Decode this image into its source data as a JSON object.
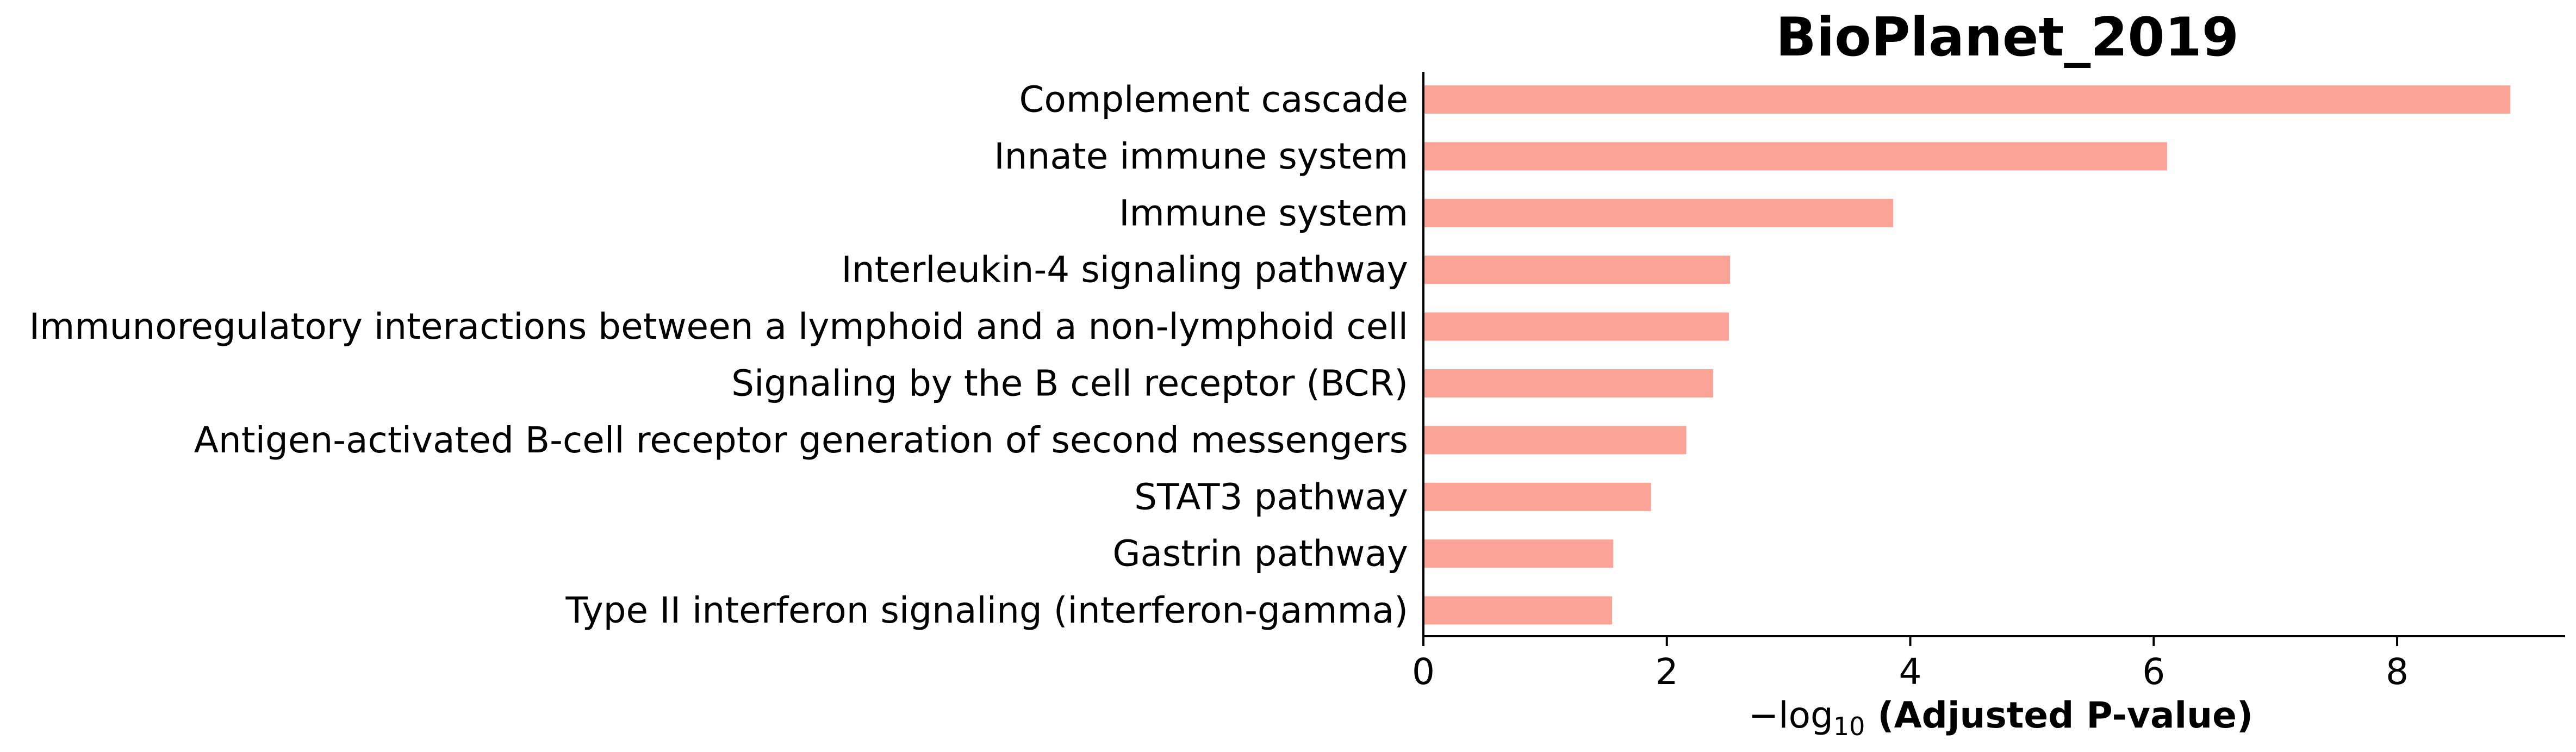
{
  "chart_data": {
    "type": "bar",
    "orientation": "horizontal",
    "title": "BioPlanet_2019",
    "xlabel": {
      "prefix": "−log",
      "subscript": "10",
      "main": " (Adjusted P-value)"
    },
    "ylabel": "",
    "categories": [
      "Complement cascade",
      "Innate immune system",
      "Immune system",
      "Interleukin-4 signaling pathway",
      "Immunoregulatory interactions between a lymphoid and a non-lymphoid cell",
      "Signaling by the B cell receptor (BCR)",
      "Antigen-activated B-cell receptor generation of second messengers",
      "STAT3 pathway",
      "Gastrin pathway",
      "Type II interferon signaling (interferon-gamma)"
    ],
    "values": [
      8.93,
      6.11,
      3.86,
      2.52,
      2.51,
      2.38,
      2.16,
      1.87,
      1.56,
      1.55
    ],
    "xlim": [
      0,
      9.38
    ],
    "xticks": [
      0,
      2,
      4,
      6,
      8
    ],
    "bar_color": "#fba397",
    "grid": false,
    "legend": "none",
    "spines": [
      "left",
      "bottom"
    ]
  }
}
